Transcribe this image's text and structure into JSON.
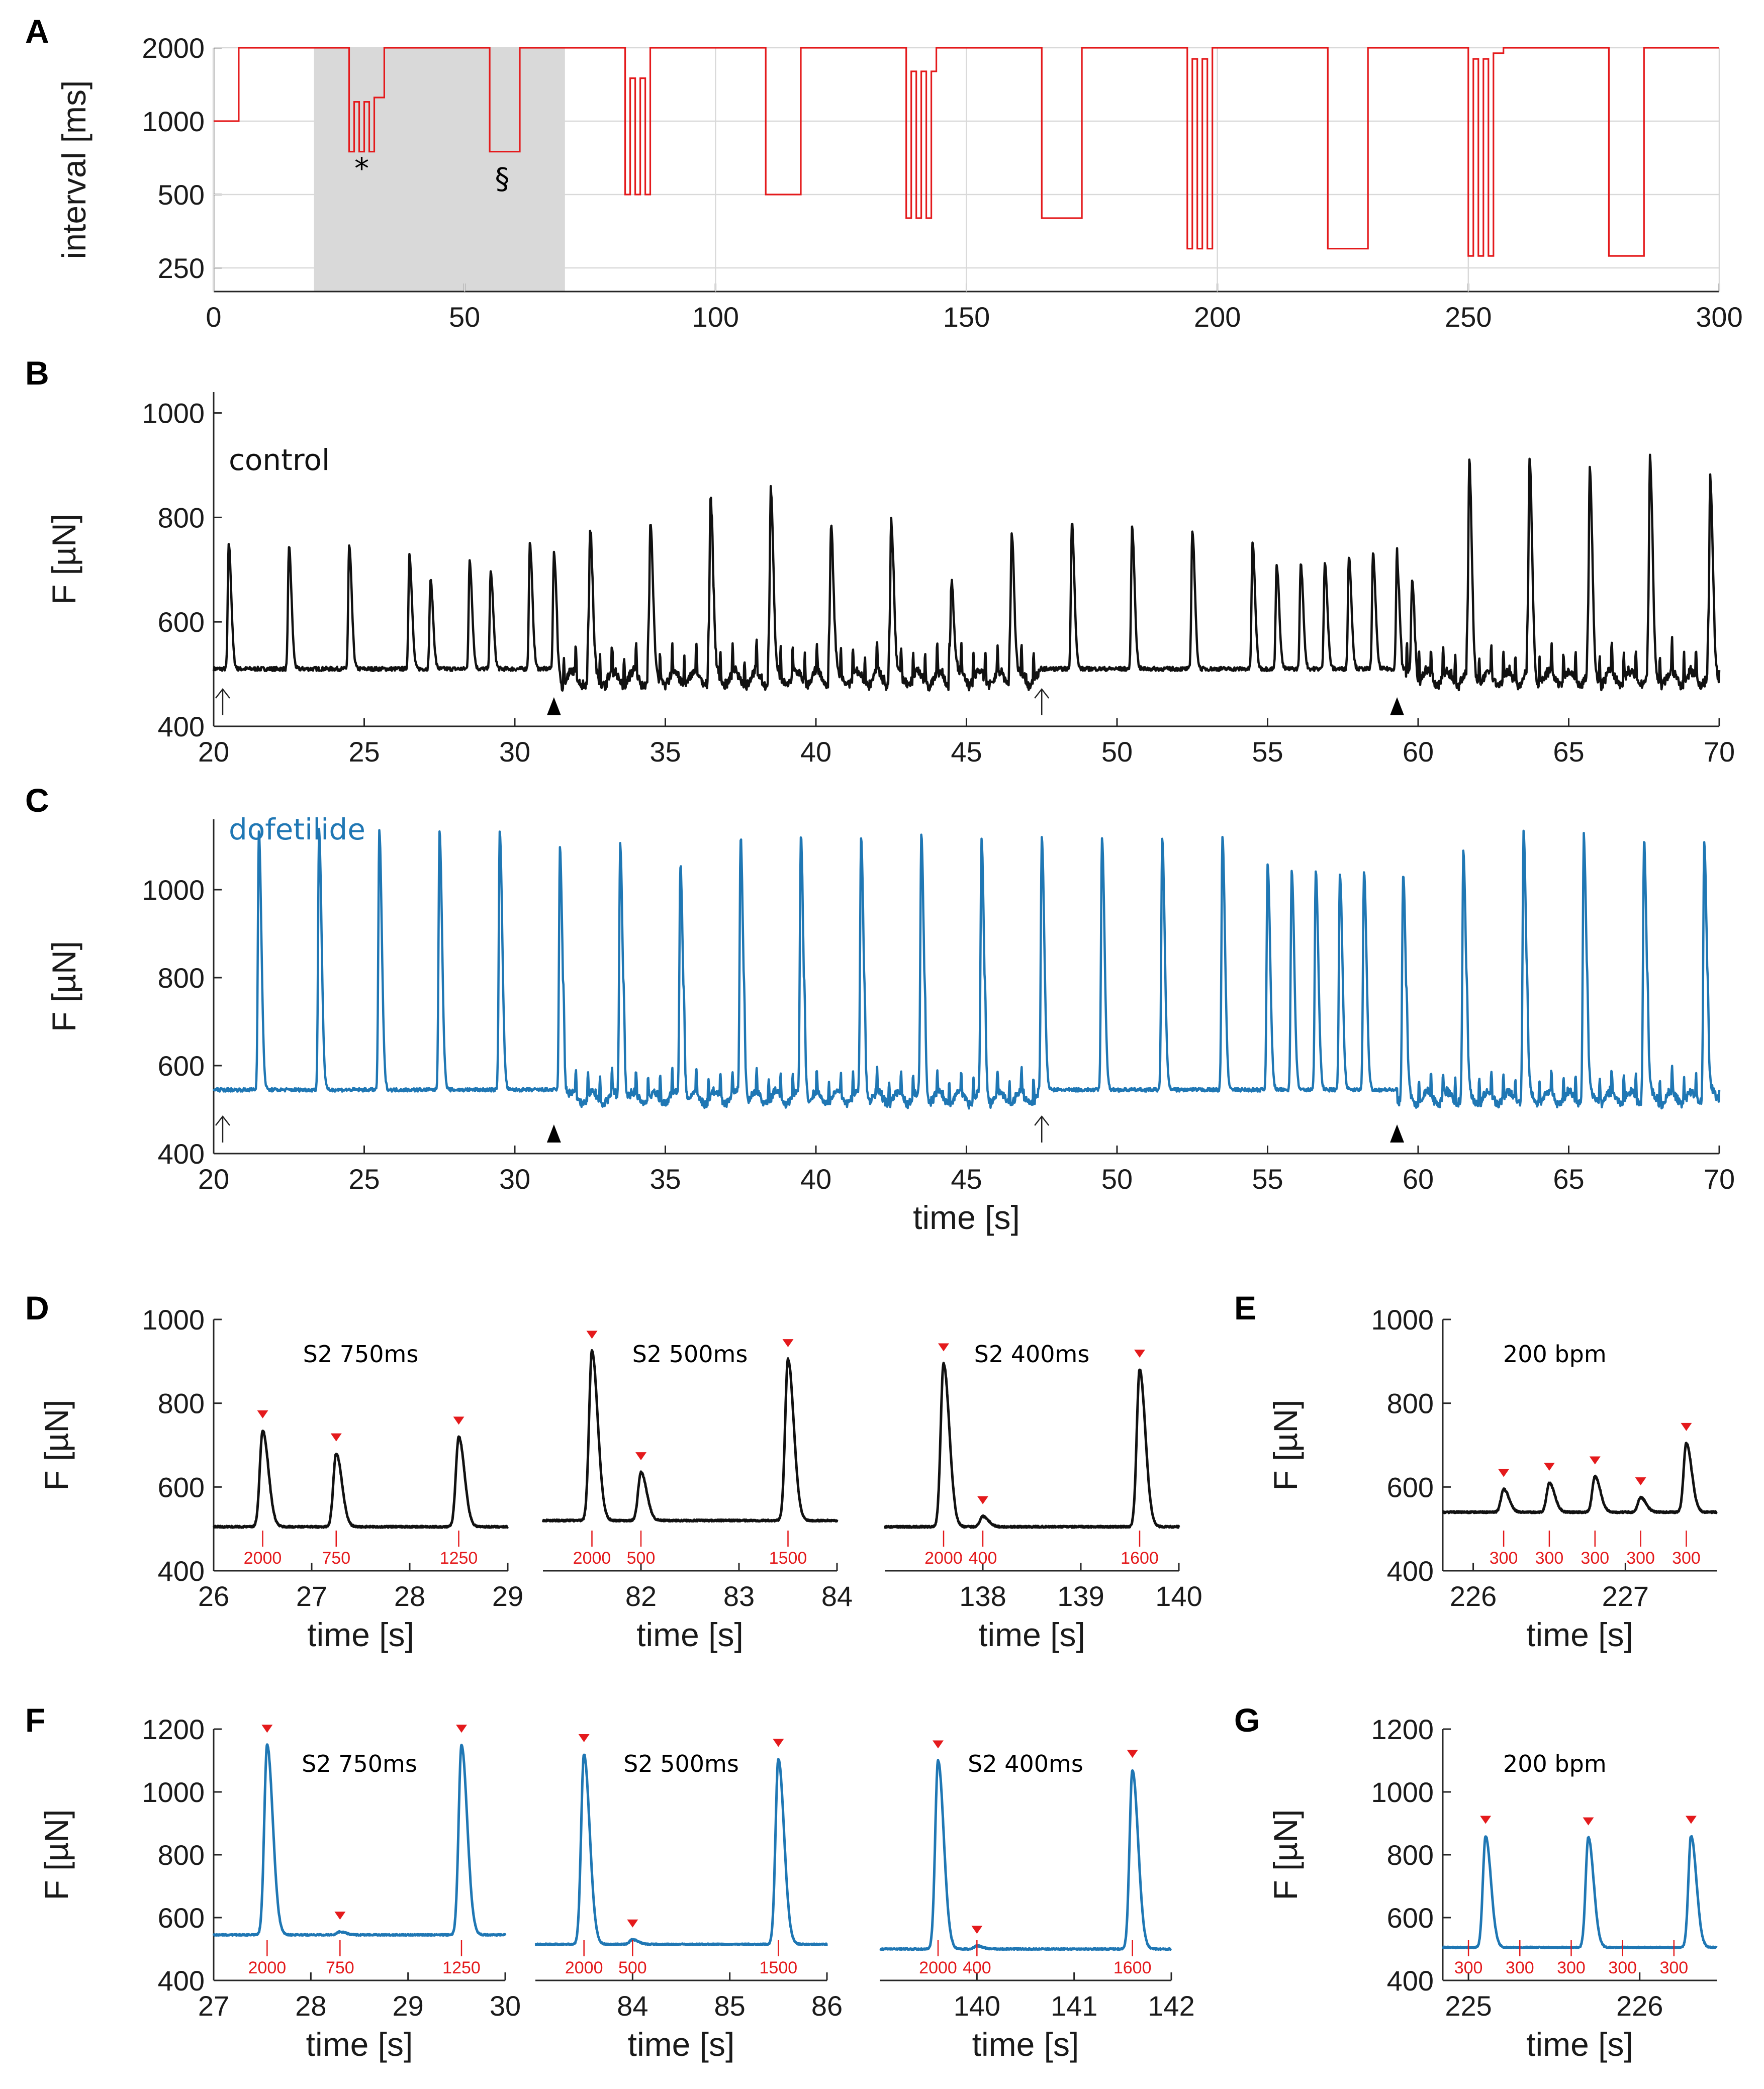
{
  "colors": {
    "red": "#e41a1c",
    "black": "#111111",
    "blue": "#1f77b4",
    "grid": "#d9d9d9",
    "shade": "#d9d9d9"
  },
  "panels": {
    "A": "A",
    "B": "B",
    "C": "C",
    "D": "D",
    "E": "E",
    "F": "F",
    "G": "G"
  },
  "chart_data": [
    {
      "id": "A",
      "type": "line",
      "color": "red",
      "ylabel": "interval [ms]",
      "xlabel": "",
      "xlim": [
        0,
        300
      ],
      "xticks": [
        0,
        50,
        100,
        150,
        200,
        250,
        300
      ],
      "ylim": [
        200,
        2000
      ],
      "ylog": true,
      "yticks": [
        250,
        500,
        1000,
        2000
      ],
      "shaded": [
        20,
        70
      ],
      "markers": [
        {
          "text": "*",
          "x": 29.5,
          "y": 640
        },
        {
          "text": "§",
          "x": 57.5,
          "y": 580
        }
      ],
      "steps": [
        [
          0,
          1000
        ],
        [
          5,
          2000
        ],
        [
          27,
          750
        ],
        [
          28,
          1200
        ],
        [
          29,
          750
        ],
        [
          30,
          1200
        ],
        [
          31,
          750
        ],
        [
          32,
          1250
        ],
        [
          34,
          2000
        ],
        [
          55,
          750
        ],
        [
          61,
          2000
        ],
        [
          82,
          500
        ],
        [
          83,
          1500
        ],
        [
          84,
          500
        ],
        [
          85,
          1500
        ],
        [
          86,
          500
        ],
        [
          87,
          2000
        ],
        [
          110,
          500
        ],
        [
          117,
          2000
        ],
        [
          138,
          400
        ],
        [
          139,
          1600
        ],
        [
          140,
          400
        ],
        [
          141,
          1600
        ],
        [
          142,
          400
        ],
        [
          143,
          1600
        ],
        [
          144,
          2000
        ],
        [
          165,
          400
        ],
        [
          173,
          2000
        ],
        [
          194,
          300
        ],
        [
          195,
          1800
        ],
        [
          196,
          300
        ],
        [
          197,
          1800
        ],
        [
          198,
          300
        ],
        [
          199,
          2000
        ],
        [
          222,
          300
        ],
        [
          230,
          2000
        ],
        [
          250,
          280
        ],
        [
          251,
          1800
        ],
        [
          252,
          280
        ],
        [
          253,
          1800
        ],
        [
          254,
          280
        ],
        [
          255,
          1900
        ],
        [
          257,
          2000
        ],
        [
          278,
          280
        ],
        [
          285,
          2000
        ],
        [
          300,
          2000
        ]
      ]
    },
    {
      "id": "B",
      "type": "line",
      "color": "black",
      "label": "control",
      "ylabel": "F [µN]",
      "xlabel": "",
      "xlim": [
        20,
        70
      ],
      "xticks": [
        20,
        25,
        30,
        35,
        40,
        45,
        50,
        55,
        60,
        65,
        70
      ],
      "ylim": [
        400,
        1040
      ],
      "yticks": [
        400,
        600,
        800,
        1000
      ],
      "baseline": 510,
      "noise": 4,
      "pause_region": [
        31.4,
        47.5
      ],
      "fast_region": [
        59.3,
        70
      ],
      "arrows": [
        20.3,
        47.5
      ],
      "triangles": [
        31.3,
        59.3
      ],
      "peaks": [
        [
          20.5,
          750
        ],
        [
          22.5,
          745
        ],
        [
          24.5,
          745
        ],
        [
          26.5,
          730
        ],
        [
          27.2,
          680
        ],
        [
          28.5,
          715
        ],
        [
          29.2,
          695
        ],
        [
          30.5,
          750
        ],
        [
          31.3,
          730
        ],
        [
          32.5,
          790
        ],
        [
          34.5,
          800
        ],
        [
          36.5,
          855
        ],
        [
          38.5,
          870
        ],
        [
          40.5,
          805
        ],
        [
          42.5,
          820
        ],
        [
          44.5,
          705
        ],
        [
          46.5,
          800
        ],
        [
          48.5,
          790
        ],
        [
          50.5,
          780
        ],
        [
          52.5,
          775
        ],
        [
          54.5,
          750
        ],
        [
          55.3,
          710
        ],
        [
          56.1,
          710
        ],
        [
          56.9,
          715
        ],
        [
          57.7,
          725
        ],
        [
          58.5,
          730
        ],
        [
          59.3,
          745
        ],
        [
          59.8,
          700
        ],
        [
          61.7,
          910
        ],
        [
          63.7,
          925
        ],
        [
          65.7,
          900
        ],
        [
          67.7,
          920
        ],
        [
          69.7,
          880
        ]
      ]
    },
    {
      "id": "C",
      "type": "line",
      "color": "blue",
      "label": "dofetilide",
      "ylabel": "F [µN]",
      "xlabel": "time [s]",
      "xlim": [
        20,
        70
      ],
      "xticks": [
        20,
        25,
        30,
        35,
        40,
        45,
        50,
        55,
        60,
        65,
        70
      ],
      "ylim": [
        400,
        1160
      ],
      "yticks": [
        400,
        600,
        800,
        1000
      ],
      "baseline": 545,
      "noise": 4,
      "pause_region": [
        31.4,
        47.5
      ],
      "fast_region": [
        59.3,
        70
      ],
      "arrows": [
        20.3,
        47.5
      ],
      "triangles": [
        31.3,
        59.3
      ],
      "peaks": [
        [
          21.5,
          1135
        ],
        [
          23.5,
          1135
        ],
        [
          25.5,
          1135
        ],
        [
          27.5,
          1135
        ],
        [
          29.5,
          1135
        ],
        [
          31.5,
          1120
        ],
        [
          33.5,
          1130
        ],
        [
          35.5,
          1080
        ],
        [
          37.5,
          1140
        ],
        [
          39.5,
          1135
        ],
        [
          41.5,
          1130
        ],
        [
          43.5,
          1135
        ],
        [
          45.5,
          1120
        ],
        [
          47.5,
          1120
        ],
        [
          49.5,
          1120
        ],
        [
          51.5,
          1115
        ],
        [
          53.5,
          1120
        ],
        [
          55.0,
          1060
        ],
        [
          55.8,
          1045
        ],
        [
          56.6,
          1045
        ],
        [
          57.4,
          1035
        ],
        [
          58.2,
          1040
        ],
        [
          59.5,
          1050
        ],
        [
          61.5,
          1100
        ],
        [
          63.5,
          1150
        ],
        [
          65.5,
          1140
        ],
        [
          67.5,
          1135
        ],
        [
          69.5,
          1135
        ]
      ]
    },
    {
      "id": "D1",
      "type": "line",
      "color": "black",
      "title": "S2 750ms",
      "ylabel": "F [µN]",
      "xlabel": "time [s]",
      "xlim": [
        26,
        29
      ],
      "xticks": [
        26,
        27,
        28,
        29
      ],
      "ylim": [
        400,
        1000
      ],
      "yticks": [
        400,
        600,
        800,
        1000
      ],
      "baseline": 505,
      "noise": 2,
      "peaks": [
        [
          26.5,
          735
        ],
        [
          27.25,
          680
        ],
        [
          28.5,
          720
        ]
      ],
      "marks": [
        {
          "x": 26.5,
          "label": "2000"
        },
        {
          "x": 27.25,
          "label": "750"
        },
        {
          "x": 28.5,
          "label": "1250"
        }
      ]
    },
    {
      "id": "D2",
      "type": "line",
      "color": "black",
      "title": "S2 500ms",
      "ylabel": "",
      "xlabel": "time [s]",
      "xlim": [
        81,
        84
      ],
      "xticks": [
        82,
        83,
        84
      ],
      "ylim": [
        400,
        1000
      ],
      "yticks": [],
      "baseline": 520,
      "noise": 2,
      "peaks": [
        [
          81.5,
          925
        ],
        [
          82.0,
          635
        ],
        [
          83.5,
          905
        ]
      ],
      "marks": [
        {
          "x": 81.5,
          "label": "2000"
        },
        {
          "x": 82.0,
          "label": "500"
        },
        {
          "x": 83.5,
          "label": "1500"
        }
      ]
    },
    {
      "id": "D3",
      "type": "line",
      "color": "black",
      "title": "S2 400ms",
      "ylabel": "",
      "xlabel": "time [s]",
      "xlim": [
        137,
        140
      ],
      "xticks": [
        138,
        139,
        140
      ],
      "ylim": [
        400,
        1000
      ],
      "yticks": [],
      "baseline": 505,
      "noise": 2,
      "peaks": [
        [
          137.6,
          895
        ],
        [
          138.0,
          530
        ],
        [
          139.6,
          880
        ]
      ],
      "marks": [
        {
          "x": 137.6,
          "label": "2000"
        },
        {
          "x": 138.0,
          "label": "400"
        },
        {
          "x": 139.6,
          "label": "1600"
        }
      ]
    },
    {
      "id": "E",
      "type": "line",
      "color": "black",
      "title": "200 bpm",
      "ylabel": "F [µN]",
      "xlabel": "time [s]",
      "xlim": [
        225.8,
        227.6
      ],
      "xticks": [
        226,
        227
      ],
      "ylim": [
        400,
        1000
      ],
      "yticks": [
        400,
        600,
        800,
        1000
      ],
      "baseline": 540,
      "noise": 2,
      "peaks": [
        [
          226.2,
          595
        ],
        [
          226.5,
          610
        ],
        [
          226.8,
          625
        ],
        [
          227.1,
          575
        ],
        [
          227.4,
          705
        ]
      ],
      "marks": [
        {
          "x": 226.2,
          "label": "300"
        },
        {
          "x": 226.5,
          "label": "300"
        },
        {
          "x": 226.8,
          "label": "300"
        },
        {
          "x": 227.1,
          "label": "300"
        },
        {
          "x": 227.4,
          "label": "300"
        }
      ]
    },
    {
      "id": "F1",
      "type": "line",
      "color": "blue",
      "title": "S2 750ms",
      "ylabel": "F [µN]",
      "xlabel": "time [s]",
      "xlim": [
        27,
        30
      ],
      "xticks": [
        27,
        28,
        29,
        30
      ],
      "ylim": [
        400,
        1200
      ],
      "yticks": [
        400,
        600,
        800,
        1000,
        1200
      ],
      "baseline": 545,
      "noise": 2,
      "peaks": [
        [
          27.55,
          1150
        ],
        [
          28.3,
          555
        ],
        [
          29.55,
          1150
        ]
      ],
      "marks": [
        {
          "x": 27.55,
          "label": "2000"
        },
        {
          "x": 28.3,
          "label": "750"
        },
        {
          "x": 29.55,
          "label": "1250"
        }
      ]
    },
    {
      "id": "F2",
      "type": "line",
      "color": "blue",
      "title": "S2 500ms",
      "ylabel": "",
      "xlabel": "time [s]",
      "xlim": [
        83,
        86
      ],
      "xticks": [
        84,
        85,
        86
      ],
      "ylim": [
        400,
        1200
      ],
      "yticks": [],
      "baseline": 515,
      "noise": 2,
      "peaks": [
        [
          83.5,
          1120
        ],
        [
          84.0,
          530
        ],
        [
          85.5,
          1105
        ]
      ],
      "marks": [
        {
          "x": 83.5,
          "label": "2000"
        },
        {
          "x": 84.0,
          "label": "500"
        },
        {
          "x": 85.5,
          "label": "1500"
        }
      ]
    },
    {
      "id": "F3",
      "type": "line",
      "color": "blue",
      "title": "S2 400ms",
      "ylabel": "",
      "xlabel": "time [s]",
      "xlim": [
        139,
        142
      ],
      "xticks": [
        140,
        141,
        142
      ],
      "ylim": [
        400,
        1200
      ],
      "yticks": [],
      "baseline": 500,
      "noise": 2,
      "peaks": [
        [
          139.6,
          1100
        ],
        [
          140.0,
          510
        ],
        [
          141.6,
          1070
        ]
      ],
      "marks": [
        {
          "x": 139.6,
          "label": "2000"
        },
        {
          "x": 140.0,
          "label": "400"
        },
        {
          "x": 141.6,
          "label": "1600"
        }
      ]
    },
    {
      "id": "G",
      "type": "line",
      "color": "blue",
      "title": "200 bpm",
      "ylabel": "F [µN]",
      "xlabel": "time [s]",
      "xlim": [
        224.85,
        226.45
      ],
      "xticks": [
        225,
        226
      ],
      "ylim": [
        400,
        1200
      ],
      "yticks": [
        400,
        600,
        800,
        1000,
        1200
      ],
      "baseline": 505,
      "noise": 2,
      "show_peak_markers_only": true,
      "peaks": [
        [
          225.1,
          860
        ],
        [
          225.7,
          855
        ],
        [
          226.3,
          860
        ]
      ],
      "peak_markers": [
        225.1,
        225.7,
        226.3
      ],
      "marks": [
        {
          "x": 225.0,
          "label": "300"
        },
        {
          "x": 225.3,
          "label": "300"
        },
        {
          "x": 225.6,
          "label": "300"
        },
        {
          "x": 225.9,
          "label": "300"
        },
        {
          "x": 226.2,
          "label": "300"
        }
      ]
    }
  ]
}
